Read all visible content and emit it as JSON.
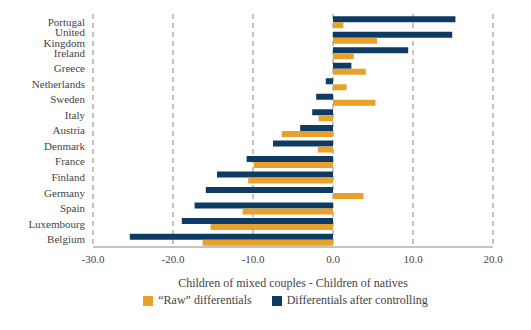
{
  "chart_data": {
    "type": "bar",
    "orientation": "horizontal",
    "x_label": "Children of mixed couples - Children of natives",
    "categories": [
      "Portugal",
      "United Kingdom",
      "Ireland",
      "Greece",
      "Netherlands",
      "Sweden",
      "Italy",
      "Austria",
      "Denmark",
      "France",
      "Finland",
      "Germany",
      "Spain",
      "Luxembourg",
      "Belgium"
    ],
    "series": [
      {
        "name": "“Raw” differentials",
        "color": "#E9A12B",
        "values": [
          1.3,
          5.5,
          2.6,
          4.1,
          1.7,
          5.3,
          -1.8,
          -6.4,
          -1.9,
          -9.9,
          -10.6,
          3.8,
          -11.3,
          -15.3,
          -16.3
        ]
      },
      {
        "name": "Differentials after controlling",
        "color": "#0E3B63",
        "values": [
          15.3,
          14.9,
          9.4,
          2.3,
          -0.9,
          -2.1,
          -2.6,
          -4.1,
          -7.5,
          -10.8,
          -14.5,
          -15.9,
          -17.3,
          -18.9,
          -25.4
        ]
      }
    ],
    "xlim": [
      -30,
      20
    ],
    "xticks": [
      {
        "value": -30,
        "label": "-30.0"
      },
      {
        "value": -20,
        "label": "-20.0"
      },
      {
        "value": -10,
        "label": "-10.0"
      },
      {
        "value": 0,
        "label": "0.0"
      },
      {
        "value": 10,
        "label": "10.0"
      },
      {
        "value": 20,
        "label": "20.0"
      }
    ],
    "grid": true,
    "legend": "bottom"
  }
}
